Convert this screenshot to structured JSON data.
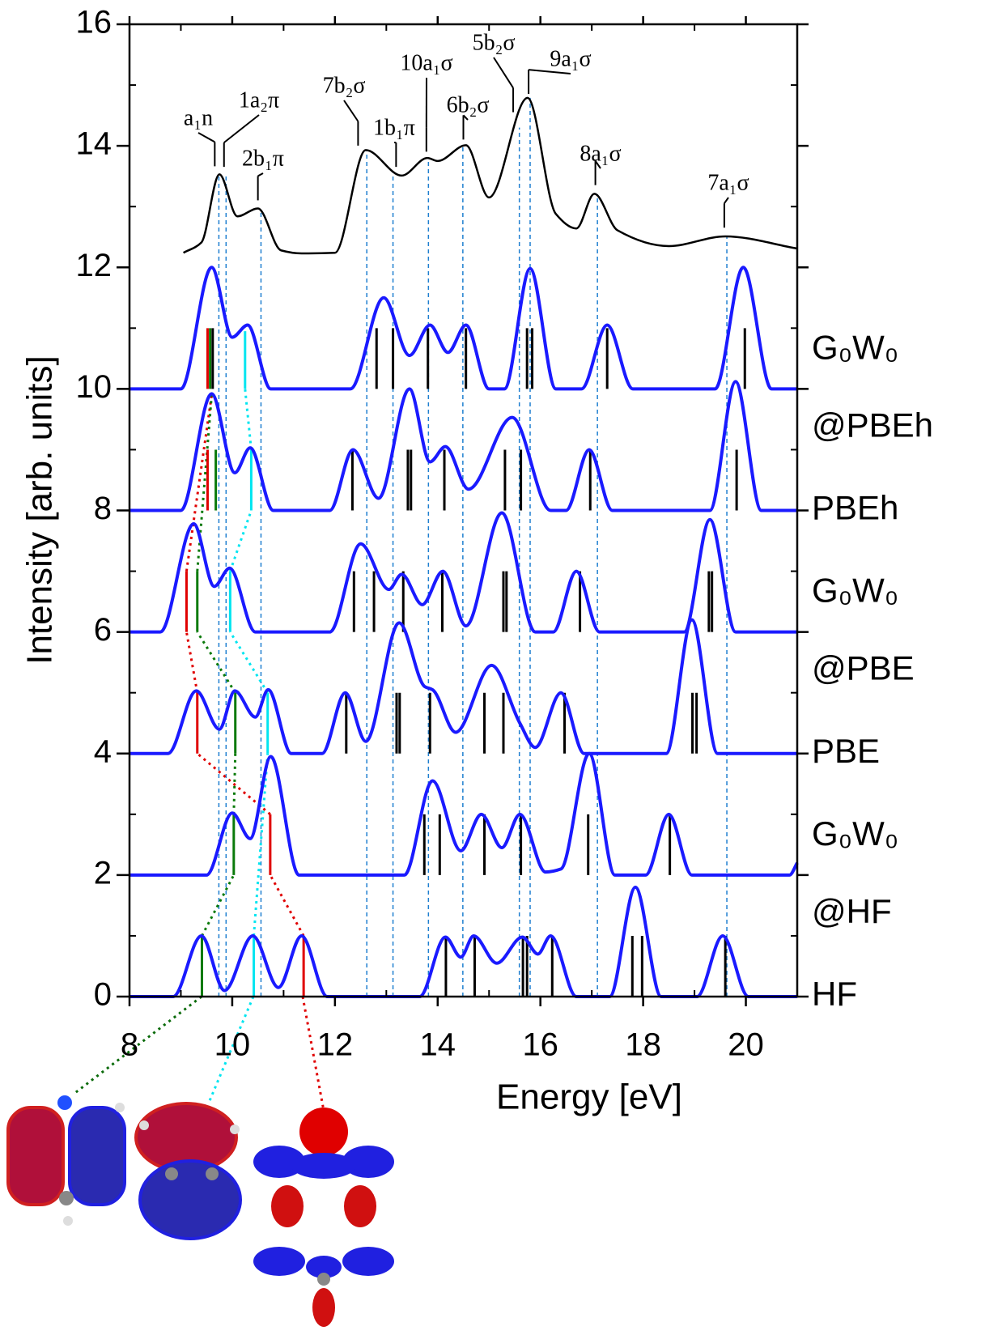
{
  "chart_data": {
    "type": "line",
    "x_label": "Energy [eV]",
    "y_label": "Intensity [arb. units]",
    "xlim": [
      8,
      21
    ],
    "xticks": [
      8,
      10,
      12,
      14,
      16,
      18,
      20
    ],
    "xminorticks": [
      9,
      11,
      13,
      15,
      17,
      19,
      21
    ],
    "ylim": [
      0,
      16
    ],
    "yticks": [
      0,
      2,
      4,
      6,
      8,
      10,
      12,
      14,
      16
    ],
    "yminorticks": [
      1,
      3,
      5,
      7,
      9,
      11,
      13,
      15
    ],
    "experiment": {
      "color": "#000000",
      "x": [
        9.05,
        9.4,
        9.75,
        10.1,
        10.5,
        10.95,
        11.35,
        12.0,
        12.6,
        13.3,
        13.8,
        14.0,
        14.55,
        15.0,
        15.75,
        16.3,
        16.7,
        17.05,
        17.5,
        18.5,
        19.6,
        21
      ],
      "values": [
        12.24,
        12.41,
        13.53,
        12.84,
        12.97,
        12.28,
        12.23,
        12.24,
        13.93,
        13.51,
        13.8,
        13.75,
        14.01,
        13.15,
        14.79,
        12.88,
        12.64,
        13.21,
        12.61,
        12.35,
        12.51,
        12.31
      ]
    },
    "reference_lines": {
      "color": "#1f7fd0",
      "x": [
        9.74,
        9.88,
        10.56,
        12.62,
        13.13,
        13.82,
        14.49,
        15.59,
        15.8,
        17.11,
        19.63
      ],
      "tops": [
        13.5,
        13.5,
        12.95,
        13.93,
        13.55,
        13.8,
        14.0,
        14.3,
        14.79,
        13.2,
        12.5
      ]
    },
    "annotations": [
      {
        "text": "a₁n",
        "x": 9.66,
        "y": 13.61
      },
      {
        "text": "1a₂π",
        "x": 9.84,
        "y": 13.6
      },
      {
        "text": "2b₁π",
        "x": 10.5,
        "y": 13.05
      },
      {
        "text": "7b₂σ",
        "x": 12.45,
        "y": 13.95
      },
      {
        "text": "1b₁π",
        "x": 13.19,
        "y": 13.6
      },
      {
        "text": "10a₁σ",
        "x": 13.78,
        "y": 13.85
      },
      {
        "text": "6b₂σ",
        "x": 14.5,
        "y": 14.05
      },
      {
        "text": "5b₂σ",
        "x": 15.47,
        "y": 14.5
      },
      {
        "text": "9a₁σ",
        "x": 15.77,
        "y": 14.8
      },
      {
        "text": "8a₁σ",
        "x": 17.07,
        "y": 13.3
      },
      {
        "text": "7a₁σ",
        "x": 19.58,
        "y": 12.6
      }
    ],
    "series": [
      {
        "name": [
          "G₀W₀",
          "@PBEh"
        ],
        "color": "#1a1aff",
        "baseline": 10,
        "x": [
          8,
          9.0,
          9.6,
          10.0,
          10.3,
          10.75,
          12.3,
          12.95,
          13.45,
          13.85,
          14.2,
          14.55,
          15.0,
          15.3,
          15.8,
          16.3,
          16.8,
          17.3,
          17.8,
          19.4,
          19.95,
          20.5,
          21
        ],
        "values": [
          10,
          10,
          12.0,
          10.85,
          11.05,
          10,
          10,
          11.5,
          10.55,
          11.05,
          10.6,
          11.05,
          10,
          10,
          11.98,
          10,
          10,
          11.05,
          10,
          10,
          12.0,
          10,
          10
        ],
        "stick_x": [
          9.52,
          9.57,
          9.62,
          10.25,
          12.81,
          13.13,
          13.81,
          14.55,
          15.74,
          15.84,
          17.3,
          19.98
        ],
        "stick_top": [
          11.0,
          11.0,
          11.0,
          10.95,
          11.0,
          11.0,
          11.0,
          11.0,
          11.0,
          11.0,
          11.0,
          11.0
        ],
        "stick_colors": [
          "#e00000",
          "#0a7a0a",
          "#000000",
          "#00e5f0",
          "#000000",
          "#000000",
          "#000000",
          "#000000",
          "#000000",
          "#000000",
          "#000000",
          "#000000"
        ]
      },
      {
        "name": [
          "PBEh"
        ],
        "color": "#1a1aff",
        "baseline": 8,
        "x": [
          8,
          9.0,
          9.6,
          10.05,
          10.35,
          10.8,
          11.9,
          12.35,
          12.85,
          13.45,
          13.85,
          14.15,
          14.6,
          15.45,
          16.2,
          16.5,
          16.95,
          17.4,
          19.3,
          19.8,
          20.3,
          21
        ],
        "values": [
          8,
          8,
          9.92,
          8.62,
          9.03,
          8,
          8,
          9.0,
          8.2,
          10.0,
          8.8,
          9.05,
          8.35,
          9.53,
          8.0,
          8.0,
          9.0,
          8,
          8,
          10.12,
          8,
          8
        ],
        "stick_x": [
          9.52,
          9.68,
          10.37,
          12.34,
          13.42,
          13.48,
          14.13,
          15.31,
          15.62,
          16.97,
          19.82
        ],
        "stick_top": [
          9.0,
          9.0,
          9.0,
          9.0,
          9.0,
          9.0,
          9.0,
          9.0,
          9.0,
          9.0,
          9.0
        ],
        "stick_colors": [
          "#e00000",
          "#0a7a0a",
          "#00e5f0",
          "#000000",
          "#000000",
          "#000000",
          "#000000",
          "#000000",
          "#000000",
          "#000000",
          "#000000"
        ]
      },
      {
        "name": [
          "G₀W₀",
          "@PBE"
        ],
        "color": "#1a1aff",
        "baseline": 6,
        "x": [
          8,
          8.6,
          9.25,
          9.65,
          9.95,
          10.45,
          11.9,
          12.5,
          13.05,
          13.3,
          13.7,
          14.1,
          14.55,
          15.25,
          15.9,
          16.25,
          16.7,
          17.15,
          18.8,
          19.3,
          19.8,
          21
        ],
        "values": [
          6,
          6,
          7.78,
          6.75,
          7.05,
          6,
          6,
          7.45,
          6.7,
          6.95,
          6.45,
          7.0,
          6.1,
          7.96,
          6,
          6,
          7.0,
          6,
          6,
          7.85,
          6,
          6
        ],
        "stick_x": [
          9.11,
          9.32,
          9.96,
          12.37,
          12.76,
          13.33,
          14.09,
          15.28,
          15.34,
          16.77,
          19.28,
          19.34
        ],
        "stick_top": [
          7.0,
          7.0,
          7.0,
          7.0,
          7.0,
          7.0,
          7.0,
          7.0,
          7.0,
          7.0,
          7.0,
          7.0
        ],
        "stick_colors": [
          "#e00000",
          "#0a7a0a",
          "#00e5f0",
          "#000000",
          "#000000",
          "#000000",
          "#000000",
          "#000000",
          "#000000",
          "#000000",
          "#000000",
          "#000000"
        ]
      },
      {
        "name": [
          "PBE"
        ],
        "color": "#1a1aff",
        "baseline": 4,
        "x": [
          8,
          8.75,
          9.3,
          9.75,
          10.05,
          10.45,
          10.7,
          11.15,
          11.75,
          12.2,
          12.6,
          13.25,
          13.75,
          13.9,
          14.35,
          15.05,
          15.6,
          15.9,
          16.4,
          16.85,
          18.45,
          18.95,
          19.45,
          21
        ],
        "values": [
          4,
          4,
          5.03,
          4.4,
          5.03,
          4.6,
          5.05,
          4,
          4,
          5.0,
          4.2,
          6.15,
          5.1,
          5.05,
          4.35,
          5.45,
          4.5,
          4.1,
          5.0,
          4,
          4,
          6.2,
          4,
          4
        ],
        "stick_x": [
          9.32,
          10.06,
          10.69,
          12.22,
          13.2,
          13.26,
          13.85,
          14.91,
          15.28,
          16.47,
          18.96,
          19.04
        ],
        "stick_top": [
          5.0,
          5.0,
          5.0,
          5.0,
          5.0,
          5.0,
          5.0,
          5.0,
          5.0,
          5.0,
          5.0,
          5.0
        ],
        "stick_colors": [
          "#e00000",
          "#0a7a0a",
          "#00e5f0",
          "#000000",
          "#000000",
          "#000000",
          "#000000",
          "#000000",
          "#000000",
          "#000000",
          "#000000",
          "#000000"
        ]
      },
      {
        "name": [
          "G₀W₀",
          "@HF"
        ],
        "color": "#1a1aff",
        "baseline": 2,
        "x": [
          8,
          9.5,
          10.0,
          10.35,
          10.75,
          11.3,
          13.35,
          13.9,
          14.45,
          14.85,
          15.25,
          15.6,
          16.1,
          16.4,
          16.95,
          17.45,
          18.05,
          18.5,
          18.95,
          20.85,
          21
        ],
        "values": [
          2,
          2,
          3.02,
          2.6,
          3.95,
          2,
          2,
          3.55,
          2.4,
          3.0,
          2.45,
          3.0,
          2.05,
          2.1,
          4.0,
          2,
          2,
          3.0,
          2,
          2,
          2.2
        ],
        "stick_x": [
          10.03,
          10.74,
          13.74,
          14.04,
          14.91,
          15.62,
          16.93,
          18.52
        ],
        "stick_top": [
          3.0,
          3.0,
          3.0,
          3.0,
          3.0,
          3.0,
          3.0,
          3.0
        ],
        "stick_colors": [
          "#0a7a0a",
          "#e00000",
          "#000000",
          "#000000",
          "#000000",
          "#000000",
          "#000000",
          "#000000"
        ]
      },
      {
        "name": [
          "HF"
        ],
        "color": "#1a1aff",
        "baseline": 0,
        "x": [
          8,
          8.85,
          9.4,
          9.85,
          10.4,
          10.9,
          11.35,
          11.85,
          13.65,
          14.15,
          14.45,
          14.7,
          15.15,
          15.65,
          15.95,
          16.2,
          16.7,
          17.35,
          17.85,
          18.35,
          19.05,
          19.55,
          20.05,
          21
        ],
        "values": [
          0,
          0,
          1.0,
          0.1,
          1.0,
          0.15,
          1.0,
          0,
          0,
          0.98,
          0.65,
          1.0,
          0.55,
          0.98,
          0.7,
          1.0,
          0,
          0,
          1.8,
          0,
          0,
          1.0,
          0,
          0
        ],
        "stick_x": [
          9.41,
          10.42,
          11.39,
          14.16,
          14.72,
          15.66,
          15.74,
          16.23,
          17.79,
          17.98,
          19.6
        ],
        "stick_top": [
          1.0,
          1.0,
          1.0,
          1.0,
          1.0,
          1.0,
          1.0,
          1.0,
          1.0,
          1.0,
          1.0
        ],
        "stick_colors": [
          "#0a7a0a",
          "#00e5f0",
          "#e00000",
          "#000000",
          "#000000",
          "#000000",
          "#000000",
          "#000000",
          "#000000",
          "#000000",
          "#000000"
        ]
      }
    ],
    "connectors": [
      {
        "color": "#e00000",
        "x": [
          11.39,
          10.74,
          null,
          10.74,
          9.32,
          null,
          9.32,
          9.11,
          null,
          9.11,
          9.6
        ],
        "values": [
          1.0,
          2.0,
          null,
          3.0,
          4.0,
          null,
          5.0,
          6.0,
          null,
          7.0,
          9.9
        ]
      },
      {
        "color": "#0a7a0a",
        "x": [
          9.41,
          10.03,
          null,
          10.03,
          10.06,
          null,
          10.06,
          9.32,
          null,
          9.32,
          9.6
        ],
        "values": [
          1.0,
          2.0,
          null,
          3.0,
          4.0,
          null,
          5.0,
          6.0,
          null,
          7.0,
          9.9
        ]
      },
      {
        "color": "#00e5f0",
        "x": [
          10.42,
          10.69,
          null,
          10.69,
          9.96,
          null,
          9.96,
          10.37,
          null,
          10.37,
          10.25
        ],
        "values": [
          1.0,
          4.0,
          null,
          5.0,
          6.0,
          null,
          7.0,
          8.0,
          null,
          9.0,
          10.0
        ]
      }
    ]
  }
}
